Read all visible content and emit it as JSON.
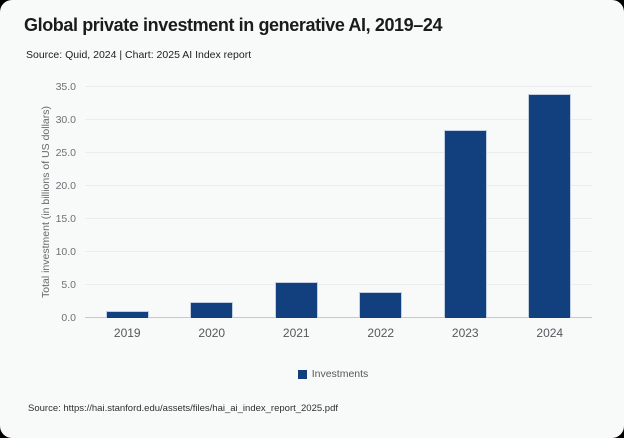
{
  "card": {
    "title": "Global private investment in generative AI, 2019–24",
    "subtitle": "Source: Quid, 2024 | Chart: 2025 AI Index report",
    "footer": "Source: https://hai.stanford.edu/assets/files/hai_ai_index_report_2025.pdf"
  },
  "legend": {
    "label": "Investments",
    "swatch_color": "#123f7d"
  },
  "colors": {
    "bar": "#123f7d",
    "bar_border": "#c3cfe0",
    "card_background": "#f8f9f9",
    "gridline": "#eaecee",
    "axis_line": "#c6cacd",
    "tick_text": "#6d7073"
  },
  "chart_data": {
    "type": "bar",
    "title": "Global private investment in generative AI, 2019–24",
    "subtitle": "Source: Quid, 2024 | Chart: 2025 AI Index report",
    "categories": [
      "2019",
      "2020",
      "2021",
      "2022",
      "2023",
      "2024"
    ],
    "series": [
      {
        "name": "Investments",
        "values": [
          1.0,
          2.5,
          5.5,
          4.0,
          28.5,
          33.9
        ]
      }
    ],
    "xlabel": "",
    "ylabel": "Total investment (in billions of US dollars)",
    "ylim": [
      0,
      35
    ],
    "ytick_step": 5,
    "ytick_labels": [
      "0.0",
      "5.0",
      "10.0",
      "15.0",
      "20.0",
      "25.0",
      "30.0",
      "35.0"
    ],
    "grid": true,
    "legend_position": "bottom",
    "bar_color": "#123f7d"
  }
}
